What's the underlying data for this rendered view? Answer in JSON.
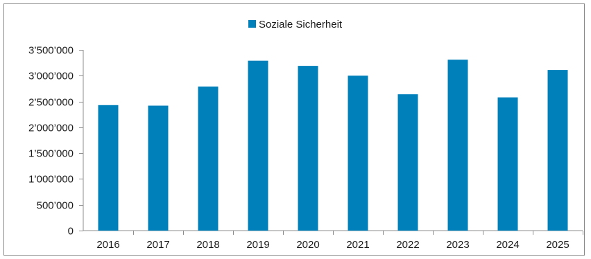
{
  "chart_data": {
    "type": "bar",
    "categories": [
      "2016",
      "2017",
      "2018",
      "2019",
      "2020",
      "2021",
      "2022",
      "2023",
      "2024",
      "2025"
    ],
    "series": [
      {
        "name": "Soziale Sicherheit",
        "color": "#0080bb",
        "values": [
          2430000,
          2420000,
          2790000,
          3290000,
          3190000,
          3000000,
          2640000,
          3310000,
          2580000,
          3110000
        ]
      }
    ],
    "ylim": [
      0,
      3500000
    ],
    "y_ticks": [
      {
        "value": 0,
        "label": "0"
      },
      {
        "value": 500000,
        "label": "500’000"
      },
      {
        "value": 1000000,
        "label": "1’000’000"
      },
      {
        "value": 1500000,
        "label": "1’500’000"
      },
      {
        "value": 2000000,
        "label": "2’000’000"
      },
      {
        "value": 2500000,
        "label": "2’500’000"
      },
      {
        "value": 3000000,
        "label": "3’000’000"
      },
      {
        "value": 3500000,
        "label": "3’500’000"
      }
    ],
    "grid": false,
    "legend": "top-center"
  }
}
